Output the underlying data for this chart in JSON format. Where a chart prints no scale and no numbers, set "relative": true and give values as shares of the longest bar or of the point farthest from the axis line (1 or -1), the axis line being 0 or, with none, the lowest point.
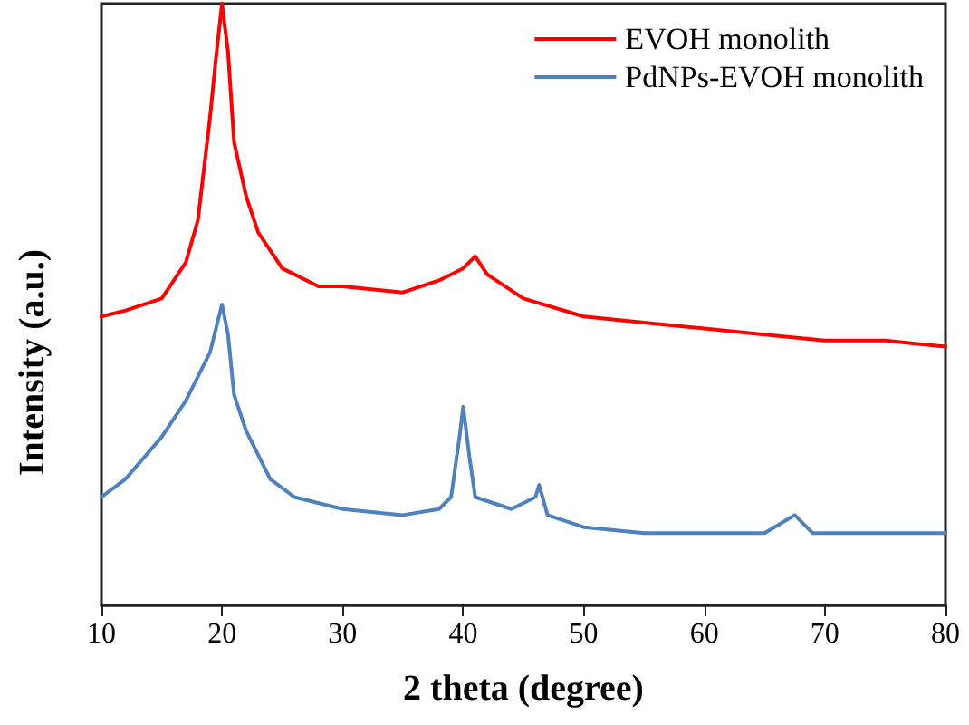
{
  "chart_data": {
    "type": "line",
    "xlabel": "2 theta (degree)",
    "ylabel": "Intensity (a.u.)",
    "relative": true,
    "xlim": [
      10,
      80
    ],
    "xticks": [
      10,
      20,
      30,
      40,
      50,
      60,
      70,
      80
    ],
    "legend": "top right",
    "grid": false,
    "marker": "none",
    "line_style": "solid",
    "series": [
      {
        "name": "EVOH monolith",
        "color": "#ff0000",
        "x": [
          10,
          12,
          15,
          17,
          18,
          19,
          19.5,
          20,
          20.5,
          21,
          22,
          23,
          25,
          28,
          30,
          35,
          38,
          40,
          41,
          42,
          45,
          50,
          55,
          60,
          65,
          70,
          75,
          80
        ],
        "values": [
          0.48,
          0.49,
          0.51,
          0.57,
          0.64,
          0.81,
          0.91,
          1,
          0.92,
          0.77,
          0.68,
          0.62,
          0.56,
          0.53,
          0.53,
          0.52,
          0.54,
          0.56,
          0.58,
          0.55,
          0.51,
          0.48,
          0.47,
          0.46,
          0.45,
          0.44,
          0.44,
          0.43
        ]
      },
      {
        "name": "PdNPs-EVOH monolith",
        "color": "#4f81bd",
        "x": [
          10,
          12,
          15,
          17,
          18,
          19,
          20,
          20.5,
          21,
          22,
          24,
          26,
          30,
          35,
          38,
          39,
          39.7,
          40,
          40.5,
          41,
          44,
          46,
          46.3,
          47,
          50,
          55,
          60,
          65,
          67.5,
          69,
          75,
          80
        ],
        "values": [
          0.18,
          0.21,
          0.28,
          0.34,
          0.38,
          0.42,
          0.5,
          0.45,
          0.35,
          0.29,
          0.21,
          0.18,
          0.16,
          0.15,
          0.16,
          0.18,
          0.28,
          0.33,
          0.25,
          0.18,
          0.16,
          0.18,
          0.2,
          0.15,
          0.13,
          0.12,
          0.12,
          0.12,
          0.15,
          0.12,
          0.12,
          0.12
        ]
      }
    ]
  }
}
